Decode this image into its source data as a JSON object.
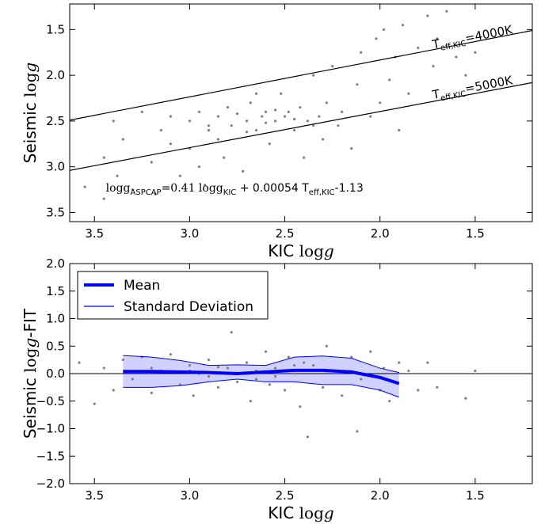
{
  "chart_data": [
    {
      "type": "scatter",
      "xlabel": [
        "KIC ",
        "log",
        "g"
      ],
      "ylabel": [
        "Seismic ",
        "log",
        "g"
      ],
      "xlim": [
        3.63,
        1.2
      ],
      "ylim": [
        3.6,
        1.22
      ],
      "xticks": [
        3.5,
        {
          "value": 3,
          "label": "3.0"
        },
        2.5,
        {
          "value": 2,
          "label": "2.0"
        },
        1.5
      ],
      "yticks": [
        1.5,
        {
          "value": 2,
          "label": "2.0"
        },
        2.5,
        {
          "value": 3,
          "label": "3.0"
        },
        3.5
      ],
      "series": [
        {
          "kind": "points",
          "color": "#808080",
          "x": [
            3.55,
            3.45,
            3.4,
            3.38,
            3.35,
            3.3,
            3.25,
            3.2,
            3.18,
            3.15,
            3.1,
            3.05,
            3.0,
            3.0,
            2.95,
            2.92,
            2.9,
            2.85,
            2.82,
            2.8,
            2.78,
            2.75,
            2.72,
            2.7,
            2.68,
            2.65,
            2.62,
            2.6,
            2.58,
            2.55,
            2.52,
            2.5,
            2.48,
            2.45,
            2.42,
            2.4,
            2.38,
            2.35,
            2.32,
            2.3,
            2.28,
            2.25,
            2.22,
            2.2,
            2.15,
            2.12,
            2.1,
            2.05,
            2.02,
            2.0,
            1.98,
            1.95,
            1.92,
            1.9,
            1.88,
            1.85,
            1.8,
            1.75,
            1.72,
            1.7,
            1.65,
            1.6,
            1.55,
            1.5,
            2.9,
            2.7,
            2.6,
            2.55,
            2.45,
            2.85,
            3.1,
            2.35,
            2.65,
            3.45,
            2.95
          ],
          "y": [
            3.22,
            2.9,
            2.5,
            3.1,
            2.7,
            3.25,
            2.4,
            2.95,
            3.3,
            2.6,
            2.45,
            3.1,
            2.5,
            2.8,
            2.4,
            3.2,
            2.6,
            2.45,
            2.9,
            2.35,
            2.55,
            2.42,
            3.05,
            2.5,
            2.3,
            2.6,
            2.45,
            2.4,
            2.75,
            2.5,
            2.2,
            2.45,
            2.4,
            2.6,
            2.35,
            2.9,
            2.5,
            2.0,
            2.45,
            2.7,
            2.3,
            1.9,
            2.55,
            2.4,
            2.8,
            2.1,
            1.75,
            2.45,
            1.6,
            2.3,
            1.5,
            2.05,
            1.8,
            2.6,
            1.45,
            2.2,
            1.7,
            1.35,
            1.9,
            1.6,
            1.3,
            1.8,
            2.0,
            1.75,
            2.55,
            2.62,
            2.52,
            2.38,
            2.48,
            2.7,
            2.75,
            2.55,
            2.2,
            3.35,
            3.0
          ]
        },
        {
          "kind": "line",
          "color": "#000000",
          "x": [
            3.63,
            1.2
          ],
          "y": [
            2.49,
            1.51
          ]
        },
        {
          "kind": "line",
          "color": "#000000",
          "x": [
            3.63,
            1.2
          ],
          "y": [
            3.04,
            2.08
          ]
        }
      ],
      "annotations": [
        {
          "parts": [
            "T",
            "eff,KIC",
            "=4000K"
          ],
          "x": 1.72,
          "y": 1.71
        },
        {
          "parts": [
            "T",
            "eff,KIC",
            "=5000K"
          ],
          "x": 1.72,
          "y": 2.26
        },
        {
          "parts": [
            "logg",
            "ASPCAP",
            "=0.41 logg",
            "KIC",
            " + 0.00054 T",
            "eff,KIC",
            "-1.13"
          ],
          "x": 3.44,
          "y": 3.27
        }
      ]
    },
    {
      "type": "scatter",
      "xlabel": [
        "KIC ",
        "log",
        "g"
      ],
      "ylabel": [
        "Seismic ",
        "log",
        "g",
        "-FIT"
      ],
      "xlim": [
        3.63,
        1.2
      ],
      "ylim": [
        -2,
        2
      ],
      "xticks": [
        3.5,
        {
          "value": 3,
          "label": "3.0"
        },
        2.5,
        {
          "value": 2,
          "label": "2.0"
        },
        1.5
      ],
      "yticks": [
        {
          "value": -2,
          "label": "−2.0"
        },
        {
          "value": -1.5,
          "label": "−1.5"
        },
        {
          "value": -1,
          "label": "−1.0"
        },
        {
          "value": -0.5,
          "label": "−0.5"
        },
        {
          "value": 0,
          "label": "0.0"
        },
        0.5,
        {
          "value": 1,
          "label": "1.0"
        },
        1.5,
        {
          "value": 2,
          "label": "2.0"
        }
      ],
      "hline": 0,
      "legend": "upper left",
      "series": [
        {
          "kind": "points",
          "color": "#808080",
          "x": [
            3.58,
            3.5,
            3.45,
            3.4,
            3.35,
            3.3,
            3.25,
            3.2,
            3.15,
            3.1,
            3.05,
            3.0,
            2.98,
            2.95,
            2.9,
            2.85,
            2.8,
            2.78,
            2.75,
            2.7,
            2.68,
            2.65,
            2.6,
            2.58,
            2.55,
            2.5,
            2.48,
            2.45,
            2.42,
            2.4,
            2.38,
            2.35,
            2.3,
            2.28,
            2.25,
            2.2,
            2.15,
            2.12,
            2.1,
            2.05,
            2.0,
            1.98,
            1.95,
            1.9,
            1.85,
            1.8,
            1.75,
            1.7,
            1.5,
            1.55,
            3.0,
            2.9,
            2.7,
            2.55,
            2.85,
            3.2,
            2.65,
            2.45
          ],
          "y": [
            0.2,
            -0.55,
            0.1,
            -0.3,
            0.25,
            -0.1,
            0.3,
            -0.35,
            0.05,
            0.35,
            -0.2,
            0.15,
            -0.4,
            0.0,
            0.25,
            -0.25,
            0.1,
            0.75,
            -0.15,
            0.2,
            -0.5,
            0.05,
            0.4,
            -0.2,
            0.1,
            -0.3,
            0.3,
            0.0,
            -0.6,
            0.2,
            -1.15,
            0.15,
            -0.25,
            0.5,
            0.05,
            -0.4,
            0.3,
            -1.05,
            -0.1,
            0.4,
            -0.3,
            0.1,
            -0.5,
            0.2,
            0.05,
            -0.3,
            0.2,
            -0.25,
            0.05,
            -0.45,
            0.05,
            -0.05,
            0.0,
            -0.05,
            0.12,
            0.1,
            -0.1,
            0.15
          ]
        },
        {
          "kind": "band",
          "name": "Standard Deviation",
          "color": "#0000ff",
          "x": [
            3.35,
            3.2,
            3.05,
            2.9,
            2.75,
            2.6,
            2.45,
            2.3,
            2.15,
            2.0,
            1.9
          ],
          "upper": [
            0.33,
            0.3,
            0.24,
            0.15,
            0.16,
            0.15,
            0.3,
            0.32,
            0.28,
            0.1,
            0.02
          ],
          "lower": [
            -0.25,
            -0.25,
            -0.22,
            -0.15,
            -0.1,
            -0.15,
            -0.15,
            -0.2,
            -0.2,
            -0.3,
            -0.43
          ]
        },
        {
          "kind": "line",
          "name": "Mean",
          "color": "#0000ff",
          "x": [
            3.35,
            3.2,
            3.05,
            2.9,
            2.75,
            2.6,
            2.45,
            2.3,
            2.15,
            2.0,
            1.9
          ],
          "y": [
            0.04,
            0.04,
            0.03,
            0.02,
            0.0,
            0.03,
            0.06,
            0.06,
            0.03,
            -0.07,
            -0.18
          ]
        }
      ]
    }
  ]
}
